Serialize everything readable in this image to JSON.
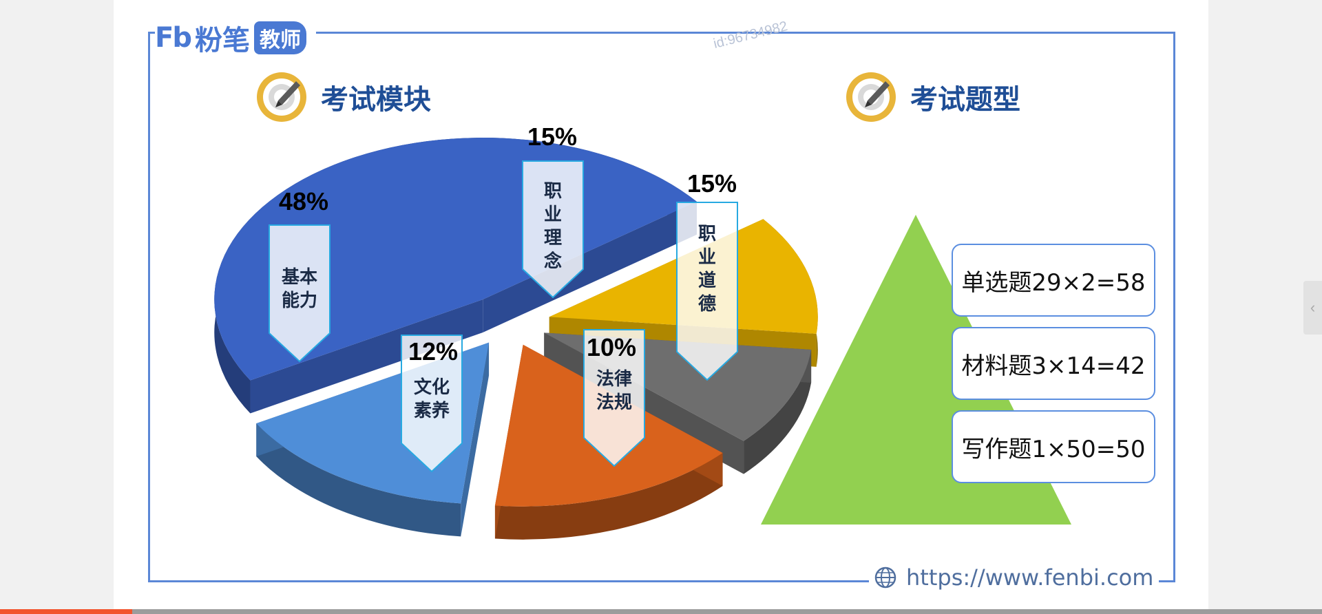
{
  "logo": {
    "mark": "Fb",
    "name": "粉笔",
    "badge": "教师"
  },
  "watermark": "id:96734982",
  "headings": {
    "left": "考试模块",
    "right": "考试题型"
  },
  "chart_data": {
    "type": "pie",
    "title": "考试模块",
    "slices": [
      {
        "label": "基本能力",
        "value": 48,
        "pct_text": "48%",
        "color": "#3a63c4"
      },
      {
        "label": "文化素养",
        "value": 12,
        "pct_text": "12%",
        "color": "#e9b400"
      },
      {
        "label": "法律法规",
        "value": 10,
        "pct_text": "10%",
        "color": "#6e6e6e"
      },
      {
        "label": "职业道德",
        "value": 15,
        "pct_text": "15%",
        "color": "#d9621c"
      },
      {
        "label": "职业理念",
        "value": 15,
        "pct_text": "15%",
        "color": "#4f8ed8"
      }
    ]
  },
  "question_types": [
    "单选题29×2=58",
    "材料题3×14=42",
    "写作题1×50=50"
  ],
  "colors": {
    "triangle": "#92d050",
    "frame": "#5b87d6",
    "heading": "#1f4e96",
    "callout_border": "#27a9e1",
    "callout_fill": "#ffffff"
  },
  "footer": {
    "url": "https://www.fenbi.com"
  },
  "player": {
    "progress": 0.1
  }
}
